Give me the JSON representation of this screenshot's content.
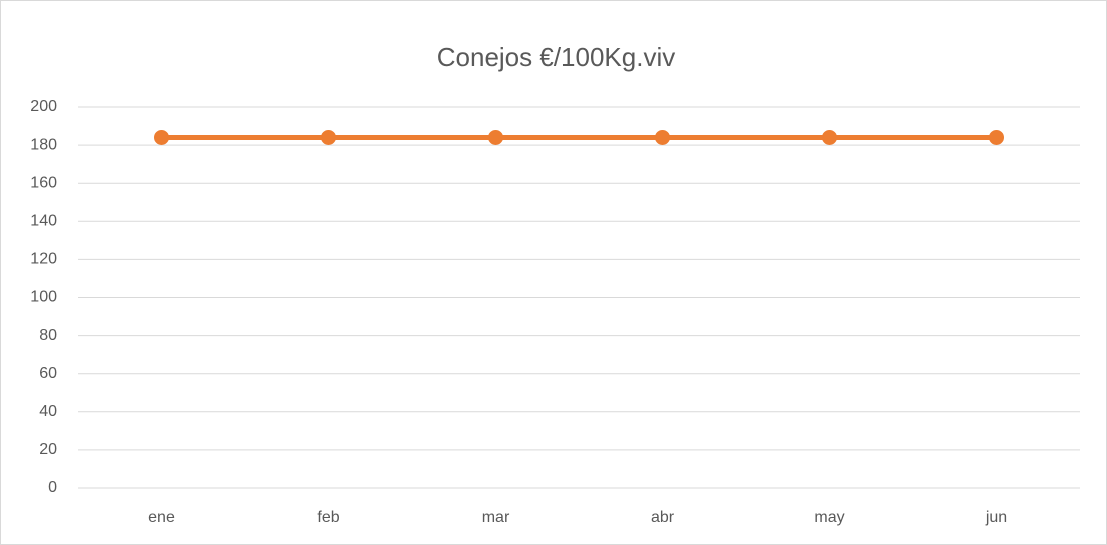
{
  "chart_data": {
    "type": "line",
    "title": "Conejos €/100Kg.viv",
    "categories": [
      "ene",
      "feb",
      "mar",
      "abr",
      "may",
      "jun"
    ],
    "series": [
      {
        "name": "Conejos",
        "color": "#ed7d31",
        "values": [
          184,
          184,
          184,
          184,
          184,
          184
        ]
      }
    ],
    "ylim": [
      0,
      200
    ],
    "yticks": [
      0,
      20,
      40,
      60,
      80,
      100,
      120,
      140,
      160,
      180,
      200
    ],
    "grid": true
  }
}
